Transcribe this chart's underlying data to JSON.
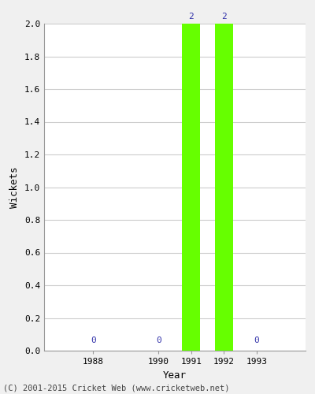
{
  "years": [
    1988,
    1990,
    1991,
    1992,
    1993
  ],
  "wickets": [
    0,
    0,
    2,
    2,
    0
  ],
  "bar_color": "#66ff00",
  "label_color": "#3333aa",
  "xlabel": "Year",
  "ylabel": "Wickets",
  "ylim": [
    0.0,
    2.0
  ],
  "xlim": [
    1986.5,
    1994.5
  ],
  "yticks": [
    0.0,
    0.2,
    0.4,
    0.6,
    0.8,
    1.0,
    1.2,
    1.4,
    1.6,
    1.8,
    2.0
  ],
  "xticks": [
    1988,
    1990,
    1991,
    1992,
    1993
  ],
  "bar_width": 0.55,
  "grid_color": "#cccccc",
  "background_color": "#f0f0f0",
  "axes_background": "#ffffff",
  "footer_text": "(C) 2001-2015 Cricket Web (www.cricketweb.net)",
  "footer_color": "#444444",
  "footer_fontsize": 7.5,
  "label_fontsize": 8,
  "tick_fontsize": 8,
  "axis_label_fontsize": 9
}
